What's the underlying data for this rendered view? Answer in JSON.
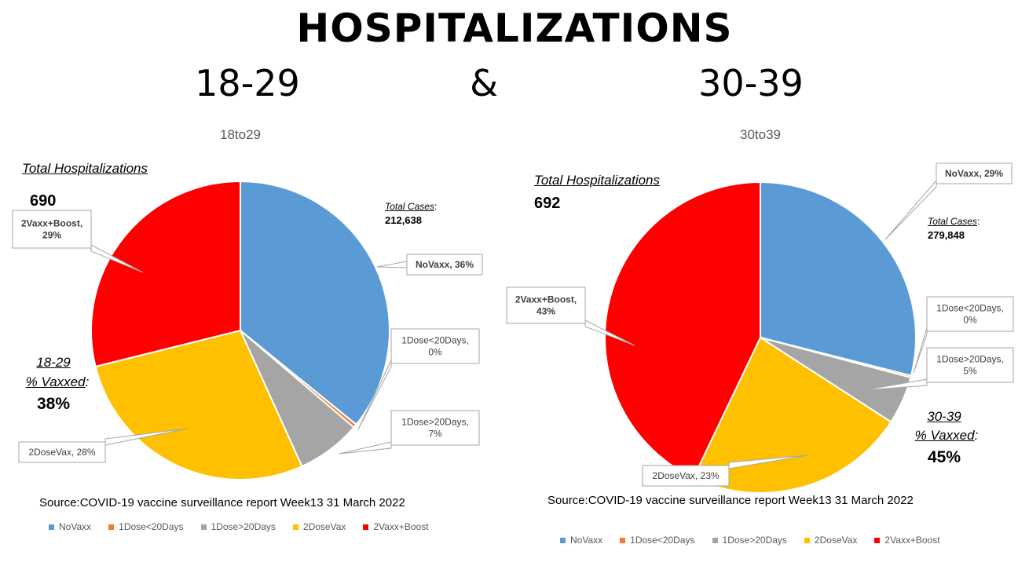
{
  "header": {
    "title": "HOSPITALIZATIONS",
    "left_age": "18-29",
    "ampersand": "&",
    "right_age": "30-39"
  },
  "colors": {
    "NoVaxx": "#5b9bd5",
    "1Dose<20Days": "#ed7d31",
    "1Dose>20Days": "#a5a5a5",
    "2DoseVax": "#ffc000",
    "2Vaxx+Boost": "#ff0000"
  },
  "source": "Source:COVID-19 vaccine surveillance report Week13  31 March 2022",
  "legend_labels": [
    "NoVaxx",
    "1Dose<20Days",
    "1Dose>20Days",
    "2DoseVax",
    "2Vaxx+Boost"
  ],
  "left": {
    "total_label": "Total Hospitalizations",
    "total_value": "690",
    "cases_label": "Total Cases",
    "cases_colon": ":",
    "cases_value": "212,638",
    "vax_age": "18-29",
    "vax_label": "% Vaxxed",
    "vax_colon": ":",
    "vax_value": "38%"
  },
  "right": {
    "total_label": "Total Hospitalizations",
    "total_value": "692",
    "cases_label": "Total Cases",
    "cases_colon": ":",
    "cases_value": "279,848",
    "vax_age": "30-39",
    "vax_label": "% Vaxxed",
    "vax_colon": ":",
    "vax_value": "45%"
  },
  "chart_data": [
    {
      "type": "pie",
      "title": "18to29",
      "labels": [
        "NoVaxx",
        "1Dose<20Days",
        "1Dose>20Days",
        "2DoseVax",
        "2Vaxx+Boost"
      ],
      "values": [
        36,
        0.4,
        7,
        28,
        29
      ],
      "data_labels": [
        "NoVaxx, 36%",
        "1Dose<20Days, 0%",
        "1Dose>20Days, 7%",
        "2DoseVax, 28%",
        "2Vaxx+Boost, 29%"
      ],
      "legend": "bottom"
    },
    {
      "type": "pie",
      "title": "30to39",
      "labels": [
        "NoVaxx",
        "1Dose<20Days",
        "1Dose>20Days",
        "2DoseVax",
        "2Vaxx+Boost"
      ],
      "values": [
        29,
        0.2,
        5,
        23,
        43
      ],
      "data_labels": [
        "NoVaxx, 29%",
        "1Dose<20Days, 0%",
        "1Dose>20Days, 5%",
        "2DoseVax, 23%",
        "2Vaxx+Boost, 43%"
      ],
      "legend": "bottom"
    }
  ]
}
